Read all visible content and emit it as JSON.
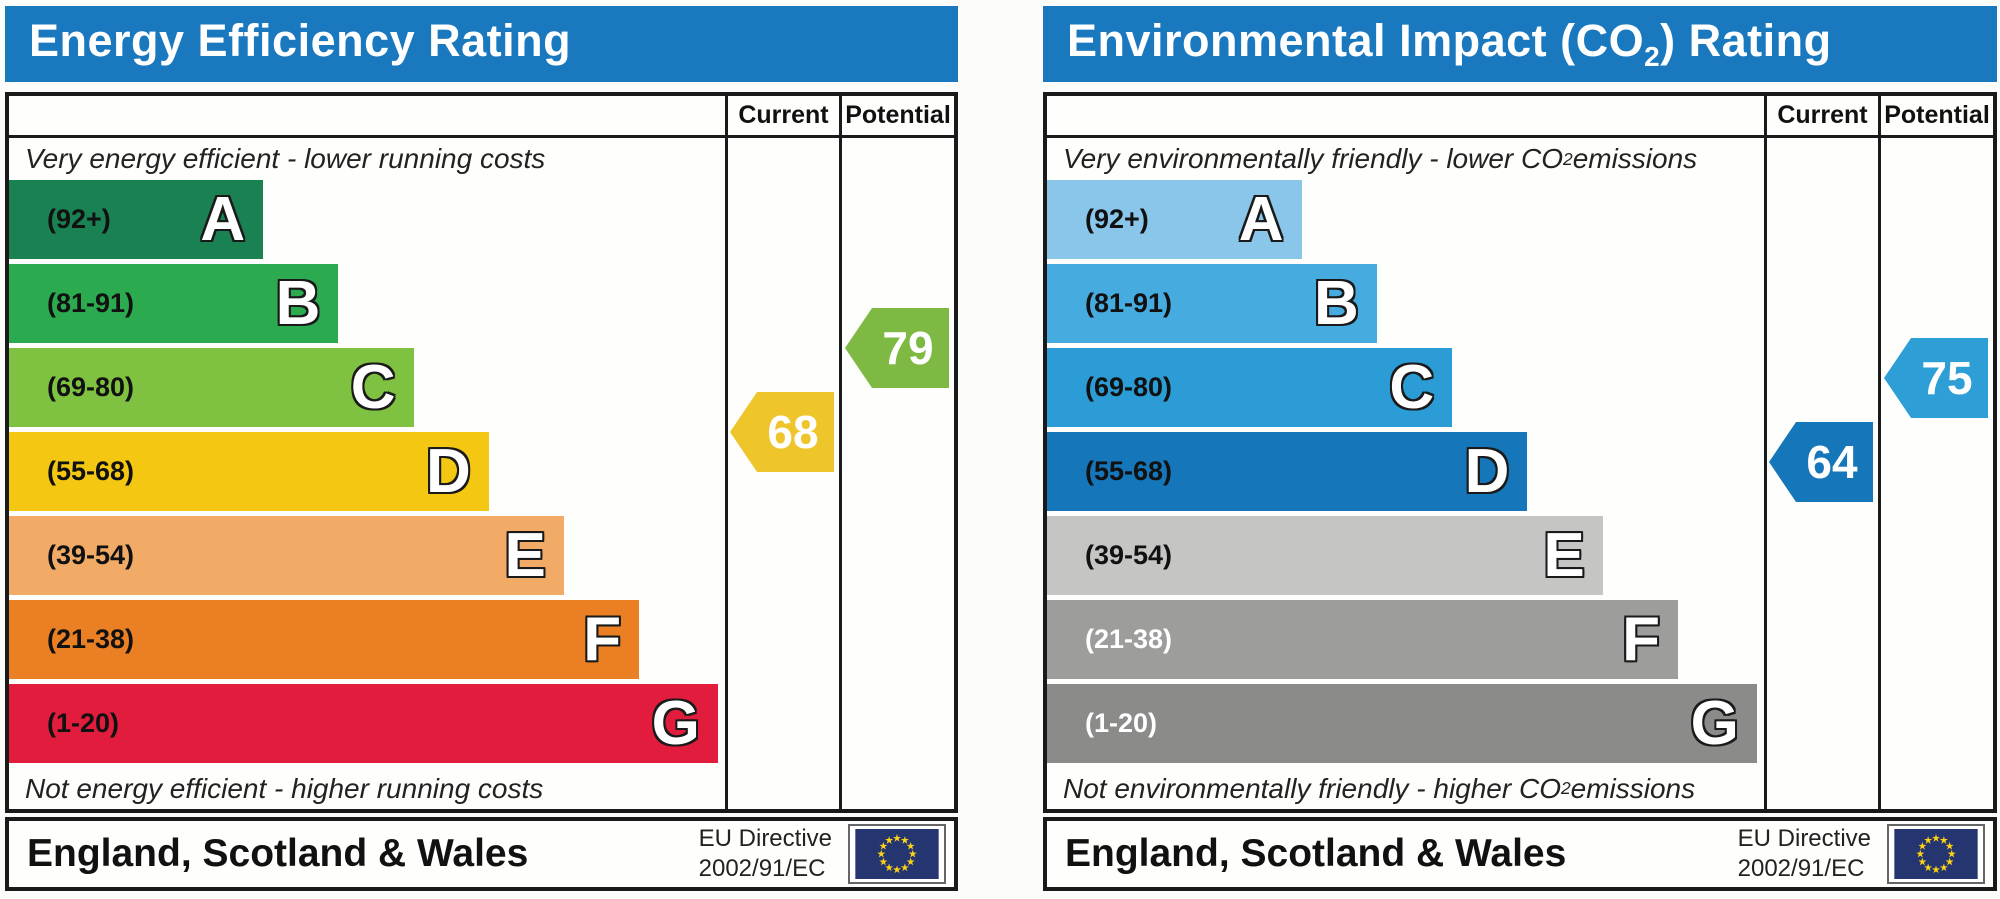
{
  "theme": {
    "header_blue": "#1a78bf",
    "flag_navy": "#24356f",
    "flag_star": "#fdd116",
    "border_black": "#1a1a1a"
  },
  "panels": [
    {
      "title_pre": "Energy Efficiency Rating",
      "title_sub": "",
      "title_post": "",
      "columns": {
        "current": "Current",
        "potential": "Potential"
      },
      "caption_top_pre": "Very energy efficient - lower running costs",
      "caption_top_sub": "",
      "caption_top_post": "",
      "caption_bottom_pre": "Not energy efficient - higher running costs",
      "caption_bottom_sub": "",
      "caption_bottom_post": "",
      "bands": [
        {
          "range": "(92+)",
          "letter": "A",
          "width_pct": 35.5,
          "color": "#1a8152",
          "label_color": "#111111"
        },
        {
          "range": "(81-91)",
          "letter": "B",
          "width_pct": 46,
          "color": "#2caa4f",
          "label_color": "#111111"
        },
        {
          "range": "(69-80)",
          "letter": "C",
          "width_pct": 56.5,
          "color": "#7fc241",
          "label_color": "#111111"
        },
        {
          "range": "(55-68)",
          "letter": "D",
          "width_pct": 67,
          "color": "#f3c712",
          "label_color": "#111111"
        },
        {
          "range": "(39-54)",
          "letter": "E",
          "width_pct": 77.5,
          "color": "#f2aa67",
          "label_color": "#111111"
        },
        {
          "range": "(21-38)",
          "letter": "F",
          "width_pct": 88,
          "color": "#ea8023",
          "label_color": "#111111"
        },
        {
          "range": "(1-20)",
          "letter": "G",
          "width_pct": 99,
          "color": "#e11c3d",
          "label_color": "#111111"
        }
      ],
      "current": {
        "value": "68",
        "band": "D",
        "row": 3,
        "color": "#eec52a"
      },
      "potential": {
        "value": "79",
        "band": "C",
        "row": 2,
        "color": "#7eb943"
      },
      "footer": {
        "region": "England, Scotland & Wales",
        "directive_line1": "EU Directive",
        "directive_line2": "2002/91/EC"
      }
    },
    {
      "title_pre": "Environmental Impact (CO",
      "title_sub": "2",
      "title_post": ") Rating",
      "columns": {
        "current": "Current",
        "potential": "Potential"
      },
      "caption_top_pre": "Very environmentally friendly - lower CO",
      "caption_top_sub": "2",
      "caption_top_post": " emissions",
      "caption_bottom_pre": "Not environmentally friendly - higher CO",
      "caption_bottom_sub": "2",
      "caption_bottom_post": " emissions",
      "bands": [
        {
          "range": "(92+)",
          "letter": "A",
          "width_pct": 35.5,
          "color": "#8ac6ea",
          "label_color": "#111111"
        },
        {
          "range": "(81-91)",
          "letter": "B",
          "width_pct": 46,
          "color": "#46abdf",
          "label_color": "#111111"
        },
        {
          "range": "(69-80)",
          "letter": "C",
          "width_pct": 56.5,
          "color": "#2b9cd5",
          "label_color": "#111111"
        },
        {
          "range": "(55-68)",
          "letter": "D",
          "width_pct": 67,
          "color": "#1576ba",
          "label_color": "#111111"
        },
        {
          "range": "(39-54)",
          "letter": "E",
          "width_pct": 77.5,
          "color": "#c5c5c3",
          "label_color": "#111111"
        },
        {
          "range": "(21-38)",
          "letter": "F",
          "width_pct": 88,
          "color": "#9d9d9b",
          "label_color": "#ffffff"
        },
        {
          "range": "(1-20)",
          "letter": "G",
          "width_pct": 99,
          "color": "#8b8b89",
          "label_color": "#ffffff"
        }
      ],
      "current": {
        "value": "64",
        "band": "D",
        "row": 3,
        "color": "#1576ba"
      },
      "potential": {
        "value": "75",
        "band": "C",
        "row": 2,
        "color": "#2d9ed6"
      },
      "footer": {
        "region": "England, Scotland & Wales",
        "directive_line1": "EU Directive",
        "directive_line2": "2002/91/EC"
      }
    }
  ],
  "chart_data": [
    {
      "type": "bar",
      "title": "Energy Efficiency Rating",
      "categories": [
        "A (92+)",
        "B (81-91)",
        "C (69-80)",
        "D (55-68)",
        "E (39-54)",
        "F (21-38)",
        "G (1-20)"
      ],
      "band_colors": [
        "#1a8152",
        "#2caa4f",
        "#7fc241",
        "#f3c712",
        "#f2aa67",
        "#ea8023",
        "#e11c3d"
      ],
      "series": [
        {
          "name": "Current",
          "values": [
            68
          ],
          "band": "D"
        },
        {
          "name": "Potential",
          "values": [
            79
          ],
          "band": "C"
        }
      ],
      "annotations": [
        "Very energy efficient - lower running costs",
        "Not energy efficient - higher running costs"
      ],
      "footer": "England, Scotland & Wales — EU Directive 2002/91/EC",
      "xlabel": "",
      "ylabel": "",
      "value_range": [
        1,
        100
      ]
    },
    {
      "type": "bar",
      "title": "Environmental Impact (CO2) Rating",
      "categories": [
        "A (92+)",
        "B (81-91)",
        "C (69-80)",
        "D (55-68)",
        "E (39-54)",
        "F (21-38)",
        "G (1-20)"
      ],
      "band_colors": [
        "#8ac6ea",
        "#46abdf",
        "#2b9cd5",
        "#1576ba",
        "#c5c5c3",
        "#9d9d9b",
        "#8b8b89"
      ],
      "series": [
        {
          "name": "Current",
          "values": [
            64
          ],
          "band": "D"
        },
        {
          "name": "Potential",
          "values": [
            75
          ],
          "band": "C"
        }
      ],
      "annotations": [
        "Very environmentally friendly - lower CO2 emissions",
        "Not environmentally friendly - higher CO2 emissions"
      ],
      "footer": "England, Scotland & Wales — EU Directive 2002/91/EC",
      "xlabel": "",
      "ylabel": "",
      "value_range": [
        1,
        100
      ]
    }
  ]
}
